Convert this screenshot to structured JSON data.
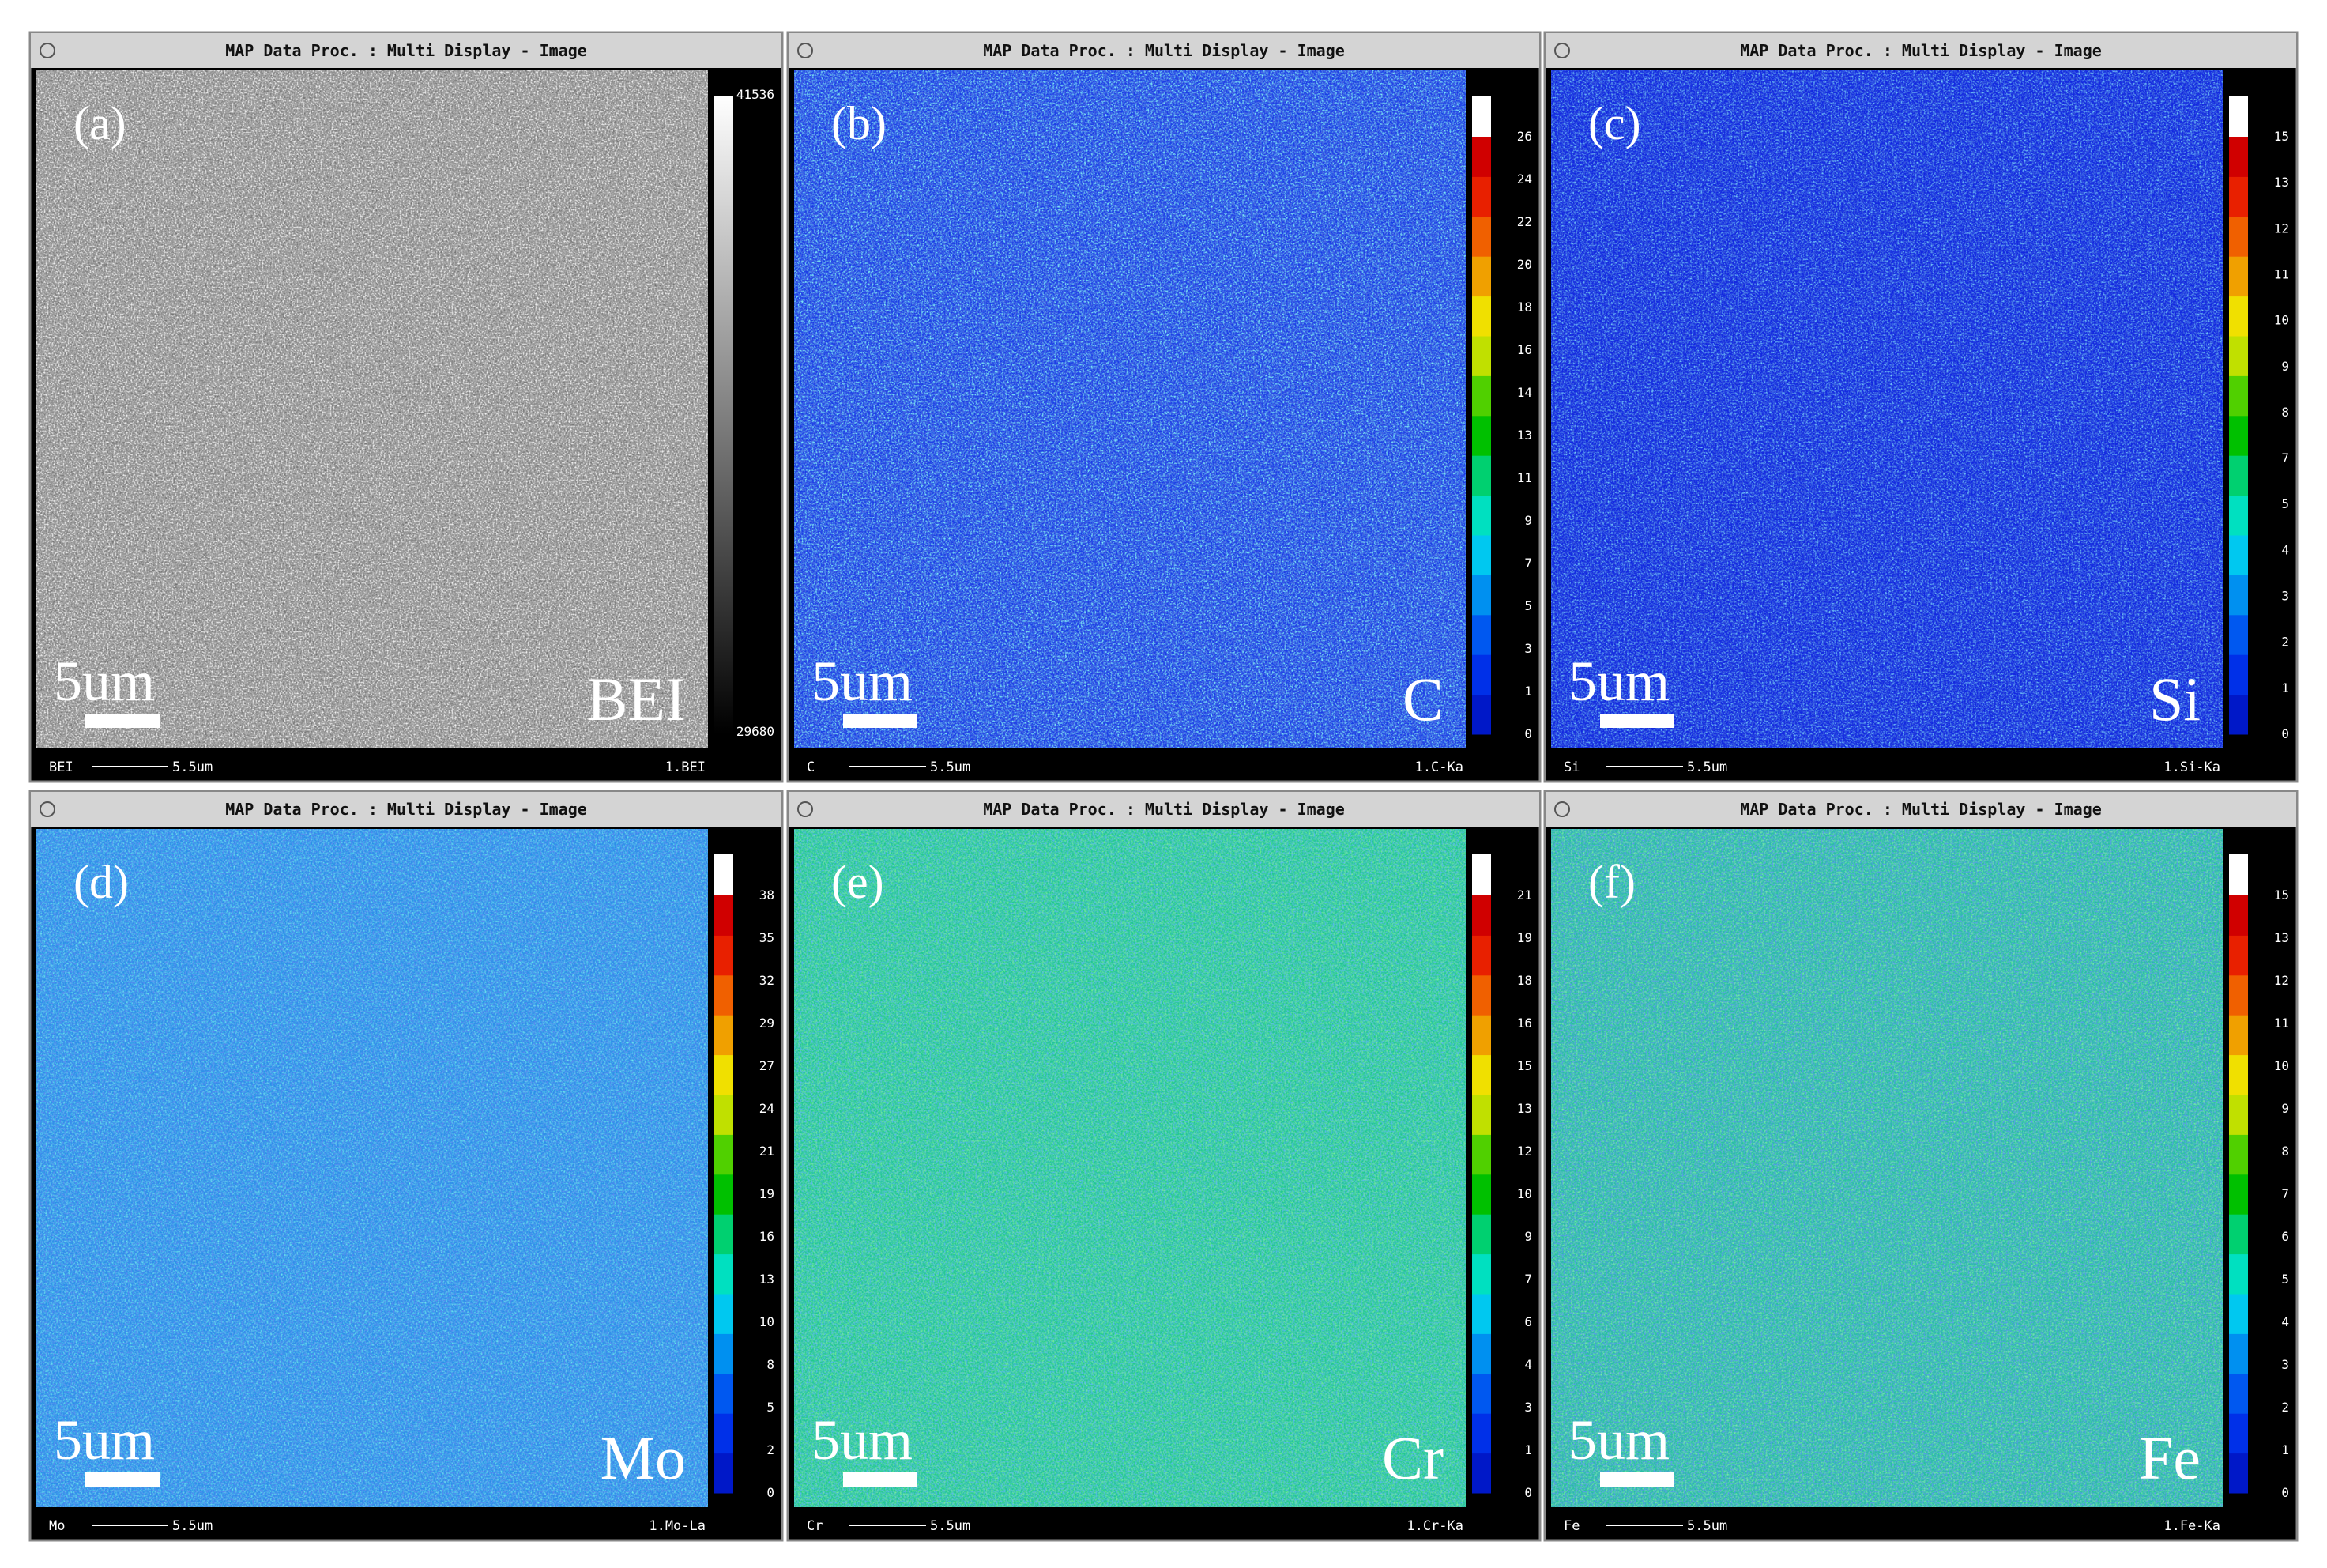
{
  "panels": [
    {
      "title": "MAP Data Proc. : Multi Display - Image",
      "letter": "(a)",
      "scale_label": "5um",
      "element": "BEI",
      "colorbar_ticks": [
        "41536",
        "29680"
      ],
      "footer": {
        "signal": "BEI",
        "scale": "5.5um",
        "channel": "1.BEI"
      }
    },
    {
      "title": "MAP Data Proc. : Multi Display - Image",
      "letter": "(b)",
      "scale_label": "5um",
      "element": "C",
      "colorbar_ticks": [
        "26",
        "24",
        "22",
        "20",
        "18",
        "16",
        "14",
        "13",
        "11",
        "9",
        "7",
        "5",
        "3",
        "1",
        "0"
      ],
      "footer": {
        "signal": "C",
        "scale": "5.5um",
        "channel": "1.C-Ka"
      }
    },
    {
      "title": "MAP Data Proc. : Multi Display - Image",
      "letter": "(c)",
      "scale_label": "5um",
      "element": "Si",
      "colorbar_ticks": [
        "15",
        "13",
        "12",
        "11",
        "10",
        "9",
        "8",
        "7",
        "5",
        "4",
        "3",
        "2",
        "1",
        "0"
      ],
      "footer": {
        "signal": "Si",
        "scale": "5.5um",
        "channel": "1.Si-Ka"
      }
    },
    {
      "title": "MAP Data Proc. : Multi Display - Image",
      "letter": "(d)",
      "scale_label": "5um",
      "element": "Mo",
      "colorbar_ticks": [
        "38",
        "35",
        "32",
        "29",
        "27",
        "24",
        "21",
        "19",
        "16",
        "13",
        "10",
        "8",
        "5",
        "2",
        "0"
      ],
      "footer": {
        "signal": "Mo",
        "scale": "5.5um",
        "channel": "1.Mo-La"
      }
    },
    {
      "title": "MAP Data Proc. : Multi Display - Image",
      "letter": "(e)",
      "scale_label": "5um",
      "element": "Cr",
      "colorbar_ticks": [
        "21",
        "19",
        "18",
        "16",
        "15",
        "13",
        "12",
        "10",
        "9",
        "7",
        "6",
        "4",
        "3",
        "1",
        "0"
      ],
      "footer": {
        "signal": "Cr",
        "scale": "5.5um",
        "channel": "1.Cr-Ka"
      }
    },
    {
      "title": "MAP Data Proc. : Multi Display - Image",
      "letter": "(f)",
      "scale_label": "5um",
      "element": "Fe",
      "colorbar_ticks": [
        "15",
        "13",
        "12",
        "11",
        "10",
        "9",
        "8",
        "7",
        "6",
        "5",
        "4",
        "3",
        "2",
        "1",
        "0"
      ],
      "footer": {
        "signal": "Fe",
        "scale": "5.5um",
        "channel": "1.Fe-Ka"
      }
    }
  ]
}
